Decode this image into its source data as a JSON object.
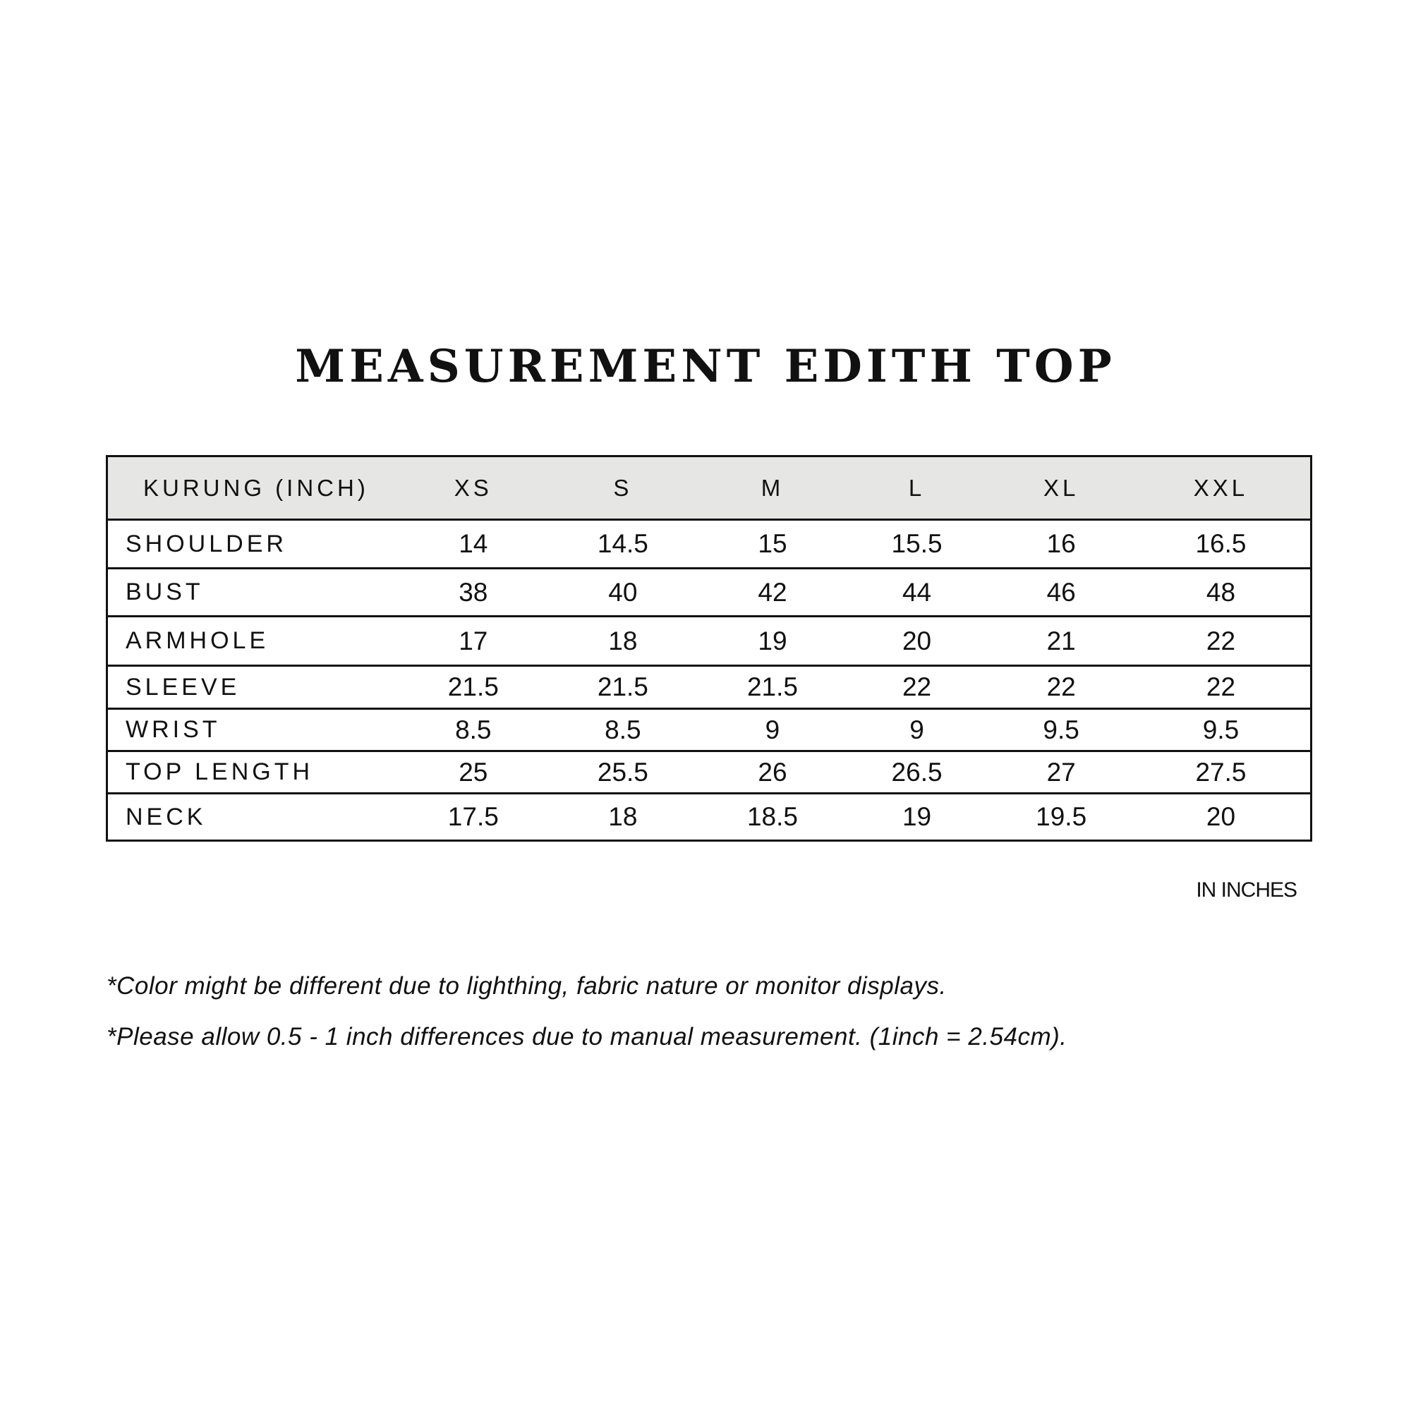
{
  "title": "MEASUREMENT EDITH TOP",
  "table": {
    "header": [
      "KURUNG (INCH)",
      "XS",
      "S",
      "M",
      "L",
      "XL",
      "XXL"
    ],
    "rows": [
      [
        "SHOULDER",
        "14",
        "14.5",
        "15",
        "15.5",
        "16",
        "16.5"
      ],
      [
        "BUST",
        "38",
        "40",
        "42",
        "44",
        "46",
        "48"
      ],
      [
        "ARMHOLE",
        "17",
        "18",
        "19",
        "20",
        "21",
        "22"
      ],
      [
        "SLEEVE",
        "21.5",
        "21.5",
        "21.5",
        "22",
        "22",
        "22"
      ],
      [
        "WRIST",
        "8.5",
        "8.5",
        "9",
        "9",
        "9.5",
        "9.5"
      ],
      [
        "TOP LENGTH",
        "25",
        "25.5",
        "26",
        "26.5",
        "27",
        "27.5"
      ],
      [
        "NECK",
        "17.5",
        "18",
        "18.5",
        "19",
        "19.5",
        "20"
      ]
    ]
  },
  "unit_note": "IN INCHES",
  "notes": [
    "*Color might be different due to lighthing, fabric nature or monitor displays.",
    "*Please allow 0.5 - 1 inch differences due to manual measurement. (1inch = 2.54cm)."
  ],
  "colors": {
    "header_bg": "#e6e6e4",
    "text": "#111111"
  }
}
